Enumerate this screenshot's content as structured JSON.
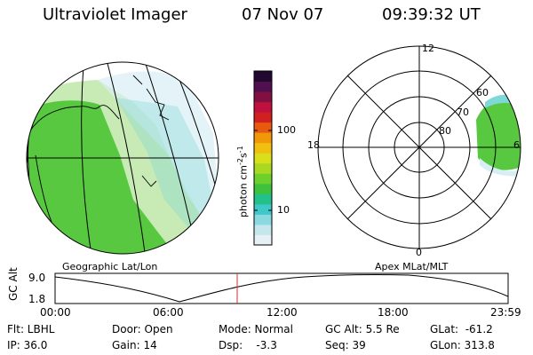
{
  "header": {
    "instrument": "Ultraviolet Imager",
    "date": "07 Nov 07",
    "time": "09:39:32 UT"
  },
  "colorbar": {
    "unit_prefix": "photon cm",
    "unit_exp1": "-2",
    "unit_mid": "s",
    "unit_exp2": "-1",
    "ticks": [
      "100",
      "10"
    ],
    "colors": [
      "#e6f0f5",
      "#c6e6ee",
      "#8ad8e0",
      "#3ec8c8",
      "#22c08a",
      "#3ec23e",
      "#6ed02a",
      "#a8d820",
      "#d8e01c",
      "#f0c010",
      "#f09808",
      "#e85a10",
      "#d02020",
      "#c01040",
      "#801040",
      "#501050",
      "#200830"
    ]
  },
  "geo_panel": {
    "caption": "Geographic Lat/Lon",
    "colors": {
      "auroral_green": "#58c840",
      "light_green": "#9ad878",
      "cyan": "#7fd8d8",
      "pale": "#d8eef4"
    }
  },
  "apex_panel": {
    "caption": "Apex MLat/MLT",
    "mlt_labels": [
      "12",
      "18",
      "6",
      "0"
    ],
    "mlat_labels": [
      "60",
      "70",
      "80"
    ]
  },
  "altitude_strip": {
    "ylabel": "GC Alt",
    "ymax_label": "9.0",
    "ymin_label": "1.8",
    "x_ticks": [
      "00:00",
      "06:00",
      "12:00",
      "18:00",
      "23:59"
    ],
    "current_time_fraction": 0.402
  },
  "info": {
    "flt": "Flt: LBHL",
    "ip": "IP: 36.0",
    "door": "Door: Open",
    "gain": "Gain: 14",
    "mode": "Mode: Normal",
    "dsp": "Dsp:    -3.3",
    "gcalt": "GC Alt: 5.5 Re",
    "seq": "Seq: 39",
    "glat": "GLat:  -61.2",
    "glon": "GLon: 313.8"
  }
}
